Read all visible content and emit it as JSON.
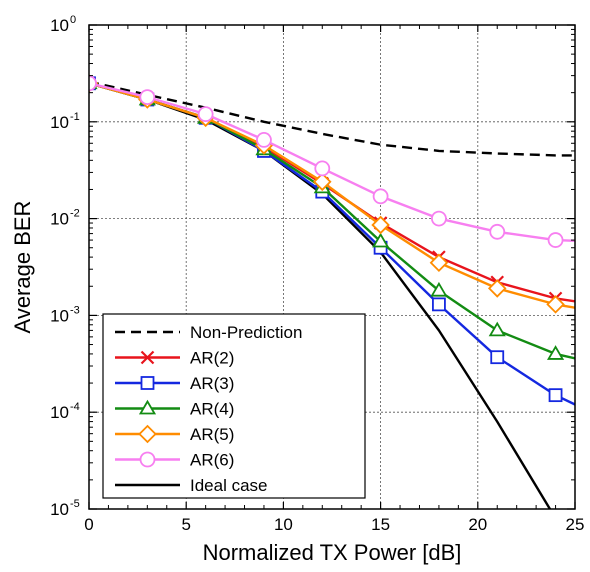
{
  "chart_data": {
    "type": "line",
    "title": "",
    "xlabel": "Normalized TX Power [dB]",
    "ylabel": "Average BER",
    "xlim": [
      0,
      25
    ],
    "ylim": [
      1e-05,
      1
    ],
    "yscale": "log",
    "grid": true,
    "grid_style": "dotted",
    "legend_position": "lower-left",
    "x_ticks": [
      0,
      5,
      10,
      15,
      20,
      25
    ],
    "x_tick_labels": [
      "0",
      "5",
      "10",
      "15",
      "20",
      "25"
    ],
    "y_ticks": [
      {
        "value": 1,
        "base": "10",
        "exp": "0"
      },
      {
        "value": 0.1,
        "base": "10",
        "exp": "-1"
      },
      {
        "value": 0.01,
        "base": "10",
        "exp": "-2"
      },
      {
        "value": 0.001,
        "base": "10",
        "exp": "-3"
      },
      {
        "value": 0.0001,
        "base": "10",
        "exp": "-4"
      },
      {
        "value": 1e-05,
        "base": "10",
        "exp": "-5"
      }
    ],
    "series": [
      {
        "name": "Non-Prediction",
        "color": "#000000",
        "dash": "dashed",
        "marker": "none",
        "x": [
          0,
          3,
          6,
          9,
          12,
          15,
          18,
          21,
          24,
          25
        ],
        "y": [
          0.26,
          0.19,
          0.14,
          0.1,
          0.075,
          0.058,
          0.05,
          0.047,
          0.045,
          0.045
        ]
      },
      {
        "name": "AR(2)",
        "color": "#e8141c",
        "dash": "solid",
        "marker": "x",
        "x": [
          0,
          3,
          6,
          9,
          12,
          15,
          18,
          21,
          24,
          25
        ],
        "y": [
          0.25,
          0.17,
          0.11,
          0.055,
          0.023,
          0.009,
          0.004,
          0.0022,
          0.0015,
          0.0014
        ]
      },
      {
        "name": "AR(3)",
        "color": "#1428e0",
        "dash": "solid",
        "marker": "square",
        "x": [
          0,
          3,
          6,
          9,
          12,
          15,
          18,
          21,
          24,
          25
        ],
        "y": [
          0.25,
          0.17,
          0.11,
          0.05,
          0.019,
          0.005,
          0.0013,
          0.00037,
          0.00015,
          0.00012
        ]
      },
      {
        "name": "AR(4)",
        "color": "#138c13",
        "dash": "solid",
        "marker": "triangle",
        "x": [
          0,
          3,
          6,
          9,
          12,
          15,
          18,
          21,
          24,
          25
        ],
        "y": [
          0.25,
          0.17,
          0.11,
          0.052,
          0.021,
          0.0058,
          0.0018,
          0.0007,
          0.0004,
          0.00036
        ]
      },
      {
        "name": "AR(5)",
        "color": "#ff8c00",
        "dash": "solid",
        "marker": "diamond",
        "x": [
          0,
          3,
          6,
          9,
          12,
          15,
          18,
          21,
          24,
          25
        ],
        "y": [
          0.25,
          0.17,
          0.11,
          0.057,
          0.024,
          0.0086,
          0.0035,
          0.0019,
          0.0013,
          0.0012
        ]
      },
      {
        "name": "AR(6)",
        "color": "#f77ff0",
        "dash": "solid",
        "marker": "circle",
        "x": [
          0,
          3,
          6,
          9,
          12,
          15,
          18,
          21,
          24,
          25
        ],
        "y": [
          0.25,
          0.18,
          0.12,
          0.065,
          0.033,
          0.017,
          0.01,
          0.0073,
          0.006,
          0.0059
        ]
      },
      {
        "name": "Ideal case",
        "color": "#000000",
        "dash": "solid",
        "marker": "none",
        "x": [
          0,
          3,
          6,
          9,
          12,
          15,
          18,
          21,
          24
        ],
        "y": [
          0.25,
          0.17,
          0.105,
          0.05,
          0.018,
          0.0045,
          0.0007,
          8e-05,
          8e-06
        ]
      }
    ]
  }
}
